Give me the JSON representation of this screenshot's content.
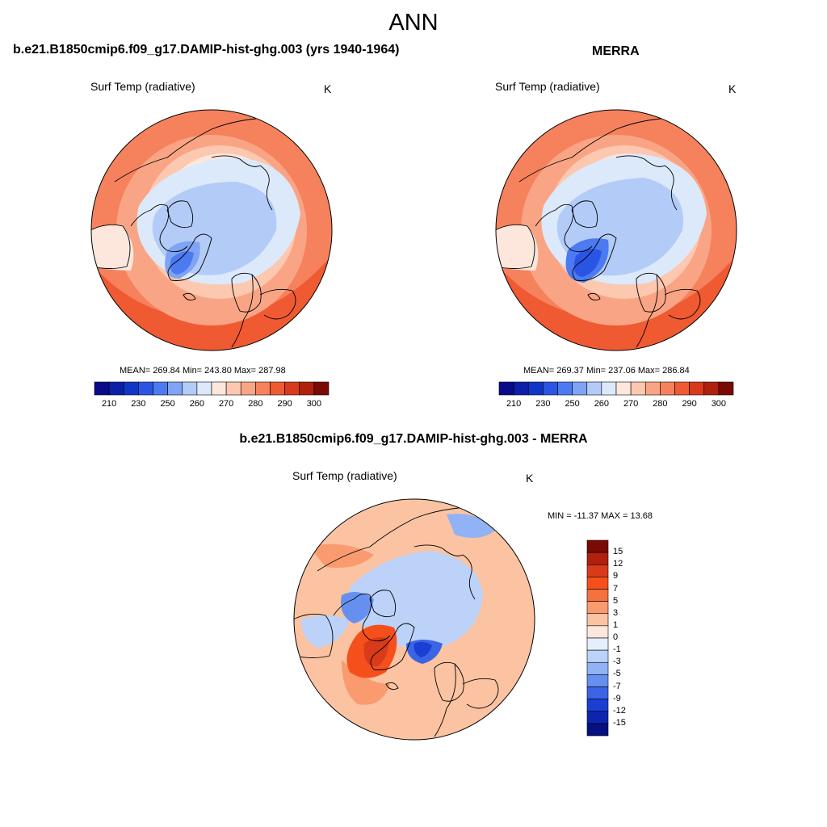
{
  "figure": {
    "title": "ANN"
  },
  "panels": [
    {
      "title": "b.e21.B1850cmip6.f09_g17.DAMIP-hist-ghg.003 (yrs 1940-1964)",
      "variable": "Surf Temp (radiative)",
      "units": "K",
      "stats": "MEAN= 269.84  Min= 243.80  Max= 287.98"
    },
    {
      "title": "MERRA",
      "variable": "Surf Temp (radiative)",
      "units": "K",
      "stats": "MEAN= 269.37  Min= 237.06  Max= 286.84"
    },
    {
      "title": "b.e21.B1850cmip6.f09_g17.DAMIP-hist-ghg.003 - MERRA",
      "variable": "Surf Temp (radiative)",
      "units": "K",
      "stats": "MIN = -11.37 MAX =  13.68"
    }
  ],
  "colorbar_abs": {
    "tick_labels": [
      "210",
      "230",
      "250",
      "260",
      "270",
      "280",
      "290",
      "300"
    ],
    "colors": [
      "#0a0a8a",
      "#0b1fa8",
      "#1036c8",
      "#2a55e4",
      "#4c7af0",
      "#7ea4f3",
      "#b3cbf7",
      "#dce9fb",
      "#fde7dc",
      "#fcc8b0",
      "#f9a585",
      "#f5825d",
      "#ef5a32",
      "#d93a1a",
      "#b0200c",
      "#7a0a04"
    ]
  },
  "colorbar_diff": {
    "tick_labels": [
      "15",
      "12",
      "9",
      "7",
      "5",
      "3",
      "1",
      "0",
      "-1",
      "-3",
      "-5",
      "-7",
      "-9",
      "-12",
      "-15"
    ],
    "colors": [
      "#7a0a04",
      "#b0200c",
      "#d93a1a",
      "#f5501c",
      "#f5713f",
      "#f99a6f",
      "#fbc3a2",
      "#fde7dc",
      "#e4eefc",
      "#bcd2f8",
      "#91b2f4",
      "#6690ef",
      "#3b64e6",
      "#1a3fd2",
      "#0d24b0",
      "#07107e"
    ]
  }
}
